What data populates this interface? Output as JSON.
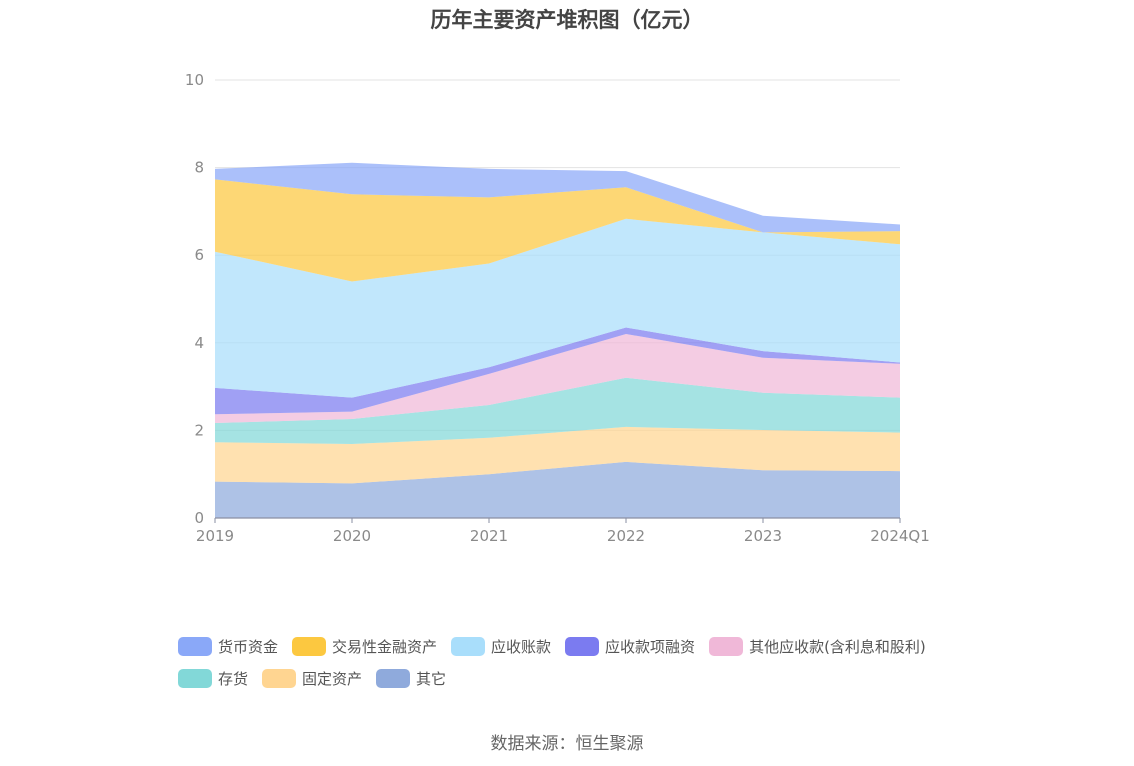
{
  "source": "数据来源：恒生聚源",
  "chart_data": {
    "type": "area",
    "stacked": true,
    "title": "历年主要资产堆积图（亿元）",
    "categories": [
      "2019",
      "2020",
      "2021",
      "2022",
      "2023",
      "2024Q1"
    ],
    "y_ticks": [
      "0",
      "2",
      "4",
      "6",
      "8",
      "10"
    ],
    "ylim": [
      0,
      10
    ],
    "grid": true,
    "legend_position": "bottom",
    "series": [
      {
        "name": "其它",
        "color": "#8faadc",
        "values": [
          0.83,
          0.79,
          1.0,
          1.28,
          1.09,
          1.07
        ]
      },
      {
        "name": "固定资产",
        "color": "#ffd591",
        "values": [
          0.9,
          0.9,
          0.83,
          0.8,
          0.92,
          0.88
        ]
      },
      {
        "name": "存货",
        "color": "#82d8d8",
        "values": [
          0.44,
          0.57,
          0.75,
          1.12,
          0.85,
          0.8
        ]
      },
      {
        "name": "其他应收款(含利息和股利)",
        "color": "#f0b8d8",
        "values": [
          0.2,
          0.17,
          0.71,
          1.0,
          0.8,
          0.77
        ]
      },
      {
        "name": "应收款项融资",
        "color": "#7b7bf0",
        "values": [
          0.6,
          0.32,
          0.15,
          0.15,
          0.15,
          0.03
        ]
      },
      {
        "name": "应收账款",
        "color": "#a9defb",
        "values": [
          3.11,
          2.65,
          2.37,
          2.48,
          2.71,
          2.7
        ]
      },
      {
        "name": "交易性金融资产",
        "color": "#fcc840",
        "values": [
          1.65,
          1.99,
          1.51,
          0.72,
          0.0,
          0.3
        ]
      },
      {
        "name": "货币资金",
        "color": "#8aa8f8",
        "values": [
          0.24,
          0.72,
          0.65,
          0.37,
          0.38,
          0.15
        ]
      }
    ]
  },
  "legend": {
    "row1": [
      {
        "label": "货币资金",
        "color": "#8aa8f8"
      },
      {
        "label": "交易性金融资产",
        "color": "#fcc840"
      },
      {
        "label": "应收账款",
        "color": "#a9defb"
      },
      {
        "label": "应收款项融资",
        "color": "#7b7bf0"
      },
      {
        "label": "其他应收款(含利息和股利)",
        "color": "#f0b8d8"
      }
    ],
    "row2": [
      {
        "label": "存货",
        "color": "#82d8d8"
      },
      {
        "label": "固定资产",
        "color": "#ffd591"
      },
      {
        "label": "其它",
        "color": "#8faadc"
      }
    ]
  }
}
